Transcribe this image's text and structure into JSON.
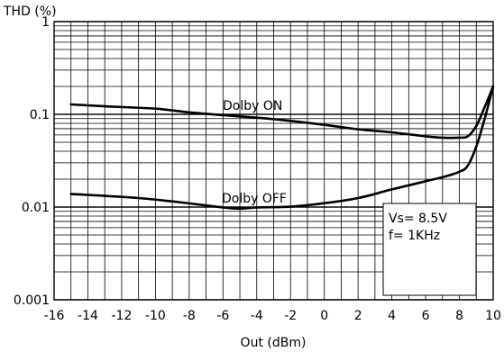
{
  "chart_data": {
    "type": "line",
    "ylabel": "THD (%)",
    "xlabel": "Out (dBm)",
    "xlim": [
      -16,
      10
    ],
    "ylim": [
      0.001,
      1
    ],
    "yscale": "log",
    "grid": true,
    "x_ticks": [
      "-16",
      "-14",
      "-12",
      "-10",
      "-8",
      "-6",
      "-4",
      "-2",
      "0",
      "2",
      "4",
      "6",
      "8",
      "10"
    ],
    "y_ticks": [
      "1",
      "0.1",
      "0.01",
      "0.001"
    ],
    "series": [
      {
        "name": "Dolby ON",
        "x": [
          -15,
          -13,
          -10,
          -8,
          -6,
          -4,
          -2,
          0,
          2,
          4,
          6,
          7,
          8,
          8.5,
          9,
          9.5,
          10
        ],
        "y": [
          0.128,
          0.122,
          0.115,
          0.105,
          0.098,
          0.092,
          0.085,
          0.077,
          0.069,
          0.064,
          0.058,
          0.056,
          0.056,
          0.058,
          0.075,
          0.12,
          0.2
        ]
      },
      {
        "name": "Dolby OFF",
        "x": [
          -15,
          -13,
          -11,
          -9,
          -7,
          -6,
          -5,
          -4,
          -2,
          0,
          2,
          4,
          6,
          7,
          8,
          8.5,
          9,
          9.5,
          10
        ],
        "y": [
          0.0138,
          0.0132,
          0.0125,
          0.0115,
          0.0104,
          0.0099,
          0.0096,
          0.0099,
          0.0101,
          0.011,
          0.0125,
          0.0155,
          0.019,
          0.021,
          0.024,
          0.028,
          0.045,
          0.09,
          0.2
        ]
      }
    ],
    "annotation": {
      "lines": [
        "Vs= 8.5V",
        "f= 1KHz"
      ]
    }
  }
}
